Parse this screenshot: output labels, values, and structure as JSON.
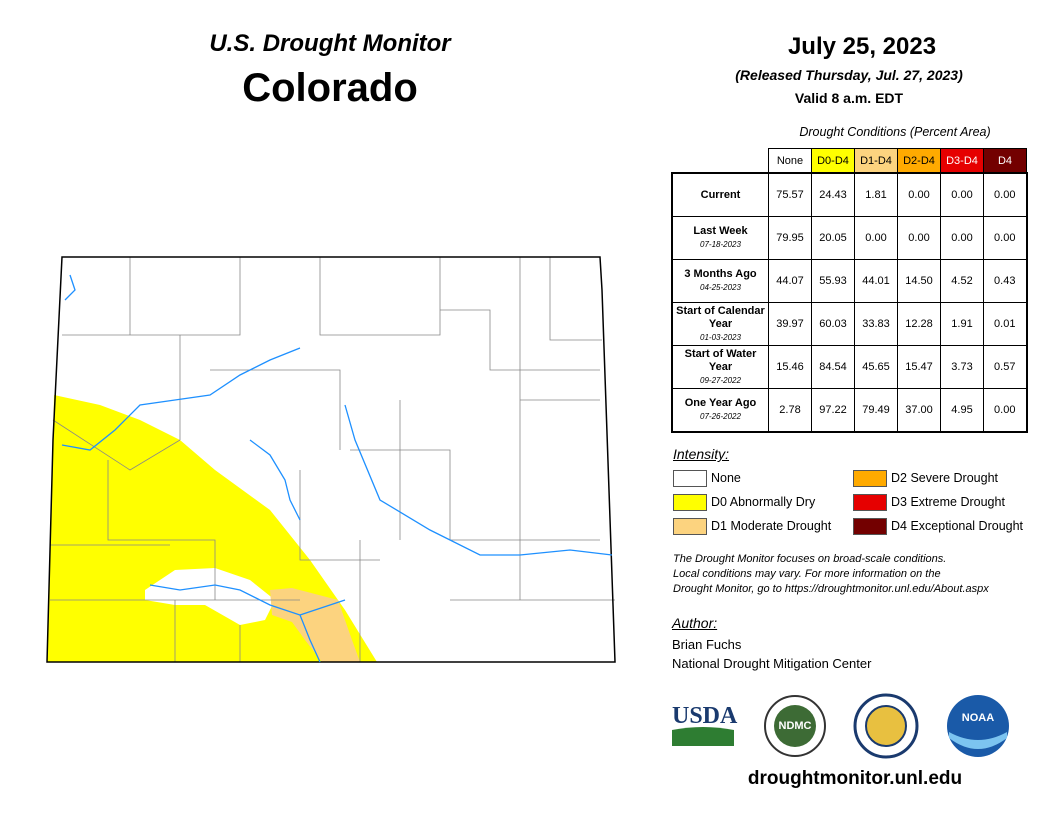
{
  "header": {
    "title": "U.S. Drought Monitor",
    "state": "Colorado",
    "date": "July 25, 2023",
    "released": "(Released Thursday, Jul. 27, 2023)",
    "valid": "Valid 8 a.m. EDT"
  },
  "table": {
    "caption": "Drought Conditions (Percent Area)",
    "columns": [
      {
        "label": "None",
        "color": "#ffffff",
        "text_color": "#000000"
      },
      {
        "label": "D0-D4",
        "color": "#ffff00",
        "text_color": "#000000"
      },
      {
        "label": "D1-D4",
        "color": "#fcd37f",
        "text_color": "#000000"
      },
      {
        "label": "D2-D4",
        "color": "#ffaa00",
        "text_color": "#000000"
      },
      {
        "label": "D3-D4",
        "color": "#e60000",
        "text_color": "#ffffff"
      },
      {
        "label": "D4",
        "color": "#730000",
        "text_color": "#ffffff"
      }
    ],
    "rows": [
      {
        "label": "Current",
        "values": [
          "75.57",
          "24.43",
          "1.81",
          "0.00",
          "0.00",
          "0.00"
        ]
      },
      {
        "label": "Last Week",
        "date": "07-18-2023",
        "values": [
          "79.95",
          "20.05",
          "0.00",
          "0.00",
          "0.00",
          "0.00"
        ]
      },
      {
        "label": "3 Months Ago",
        "date": "04-25-2023",
        "values": [
          "44.07",
          "55.93",
          "44.01",
          "14.50",
          "4.52",
          "0.43"
        ]
      },
      {
        "label": "Start of Calendar Year",
        "date": "01-03-2023",
        "values": [
          "39.97",
          "60.03",
          "33.83",
          "12.28",
          "1.91",
          "0.01"
        ]
      },
      {
        "label": "Start of Water Year",
        "date": "09-27-2022",
        "values": [
          "15.46",
          "84.54",
          "45.65",
          "15.47",
          "3.73",
          "0.57"
        ]
      },
      {
        "label": "One Year Ago",
        "date": "07-26-2022",
        "values": [
          "2.78",
          "97.22",
          "79.49",
          "37.00",
          "4.95",
          "0.00"
        ]
      }
    ]
  },
  "legend": {
    "title": "Intensity:",
    "items": [
      {
        "label": "None",
        "color": "#ffffff"
      },
      {
        "label": "D0 Abnormally Dry",
        "color": "#ffff00"
      },
      {
        "label": "D1 Moderate Drought",
        "color": "#fcd37f"
      },
      {
        "label": "D2 Severe Drought",
        "color": "#ffaa00"
      },
      {
        "label": "D3 Extreme Drought",
        "color": "#e60000"
      },
      {
        "label": "D4 Exceptional Drought",
        "color": "#730000"
      }
    ]
  },
  "note": [
    "The Drought Monitor focuses on broad-scale conditions.",
    "Local conditions may vary. For more information on the",
    "Drought Monitor, go to https://droughtmonitor.unl.edu/About.aspx"
  ],
  "author": {
    "label": "Author:",
    "lines": [
      "Brian Fuchs",
      "National Drought Mitigation Center"
    ]
  },
  "logos": {
    "usda": "USDA",
    "ndmc": "NDMC",
    "noaa": "NOAA"
  },
  "url": "droughtmonitor.unl.edu"
}
